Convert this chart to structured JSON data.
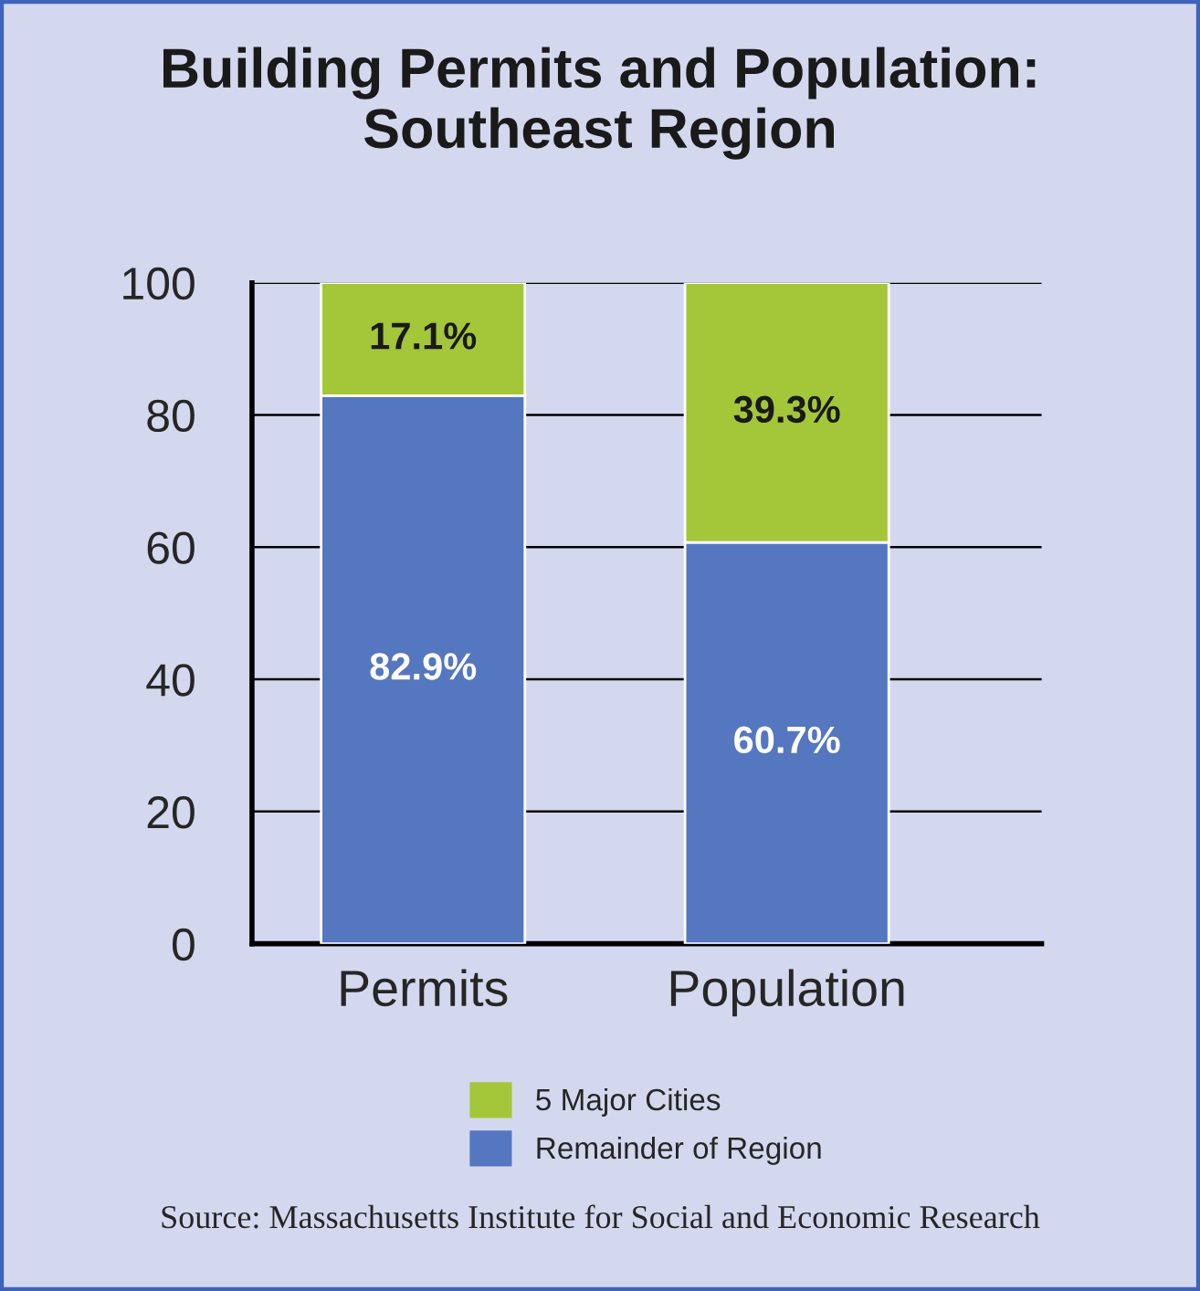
{
  "chart_data": {
    "type": "bar",
    "title": "Building Permits and Population:\nSoutheast Region",
    "categories": [
      "Permits",
      "Population"
    ],
    "series": [
      {
        "name": "Remainder of Region",
        "color": "#5577c0",
        "values": [
          82.9,
          60.7
        ],
        "value_labels": [
          "82.9%",
          "60.7%"
        ]
      },
      {
        "name": "5 Major Cities",
        "color": "#a4c639",
        "values": [
          17.1,
          39.3
        ],
        "value_labels": [
          "17.1%",
          "39.3%"
        ]
      }
    ],
    "stacked": true,
    "ylim": [
      0,
      100
    ],
    "yticks": [
      0,
      20,
      40,
      60,
      80,
      100
    ],
    "grid": "y",
    "legend": "bottom",
    "annotations": [
      "Source: Massachusetts Institute for Social and Economic Research"
    ]
  }
}
